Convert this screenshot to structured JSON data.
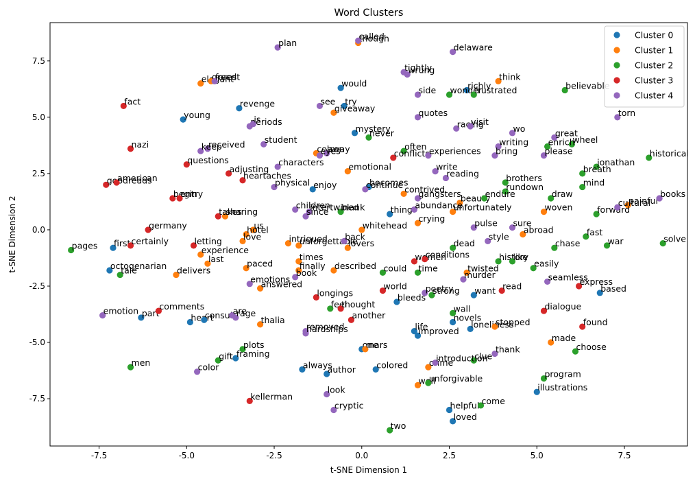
{
  "chart_data": {
    "type": "scatter",
    "title": "Word Clusters",
    "xlabel": "t-SNE Dimension 1",
    "ylabel": "t-SNE Dimension 2",
    "xlim": [
      -8.9,
      9.3
    ],
    "ylim": [
      -9.6,
      9.2
    ],
    "xticks": [
      -7.5,
      -5.0,
      -2.5,
      0.0,
      2.5,
      5.0,
      7.5
    ],
    "yticks": [
      -7.5,
      -5.0,
      -2.5,
      0.0,
      2.5,
      5.0,
      7.5
    ],
    "legend_position": "top-right",
    "colors": [
      "#1f77b4",
      "#ff7f0e",
      "#2ca02c",
      "#d62728",
      "#9467bd"
    ],
    "series": [
      {
        "name": "Cluster 0",
        "points": [
          {
            "x": -0.6,
            "y": 6.3,
            "label": "would"
          },
          {
            "x": -3.5,
            "y": 5.4,
            "label": "revenge"
          },
          {
            "x": -0.5,
            "y": 5.5,
            "label": "try"
          },
          {
            "x": -5.1,
            "y": 4.9,
            "label": "young"
          },
          {
            "x": -0.2,
            "y": 4.3,
            "label": "mystery"
          },
          {
            "x": -1.4,
            "y": 1.8,
            "label": "enjoy"
          },
          {
            "x": 0.2,
            "y": 1.9,
            "label": "becomes"
          },
          {
            "x": 0.8,
            "y": 0.7,
            "label": "thing"
          },
          {
            "x": -7.1,
            "y": -0.8,
            "label": "first"
          },
          {
            "x": -7.2,
            "y": -1.8,
            "label": "octogenarian"
          },
          {
            "x": 6.8,
            "y": -2.8,
            "label": "based"
          },
          {
            "x": 3.2,
            "y": -2.9,
            "label": "want"
          },
          {
            "x": 1.0,
            "y": -3.2,
            "label": "bleeds"
          },
          {
            "x": -6.3,
            "y": -3.9,
            "label": "part"
          },
          {
            "x": -4.9,
            "y": -4.1,
            "label": "heart"
          },
          {
            "x": -4.5,
            "y": -4.0,
            "label": "consult"
          },
          {
            "x": 2.6,
            "y": -4.1,
            "label": "novels"
          },
          {
            "x": 3.1,
            "y": -4.4,
            "label": "loneliness"
          },
          {
            "x": 1.5,
            "y": -4.5,
            "label": "life"
          },
          {
            "x": 1.6,
            "y": -4.7,
            "label": "improved"
          },
          {
            "x": 0.0,
            "y": -5.3,
            "label": "one"
          },
          {
            "x": -3.6,
            "y": -5.7,
            "label": "framing"
          },
          {
            "x": -1.7,
            "y": -6.2,
            "label": "always"
          },
          {
            "x": -1.0,
            "y": -6.4,
            "label": "author"
          },
          {
            "x": 0.4,
            "y": -6.2,
            "label": "colored"
          },
          {
            "x": 5.0,
            "y": -7.2,
            "label": "illustrations"
          },
          {
            "x": 2.5,
            "y": -8.0,
            "label": "helpful"
          },
          {
            "x": 2.6,
            "y": -8.5,
            "label": "loved"
          },
          {
            "x": 3.0,
            "y": 6.2,
            "label": "richly"
          }
        ]
      },
      {
        "name": "Cluster 1",
        "points": [
          {
            "x": -0.1,
            "y": 8.3,
            "label": "though"
          },
          {
            "x": 3.9,
            "y": 6.6,
            "label": "think"
          },
          {
            "x": -4.6,
            "y": 6.5,
            "label": "elegant"
          },
          {
            "x": -0.8,
            "y": 5.2,
            "label": "giveaway"
          },
          {
            "x": -1.3,
            "y": 3.4,
            "label": "colson"
          },
          {
            "x": -0.4,
            "y": 2.6,
            "label": "emotional"
          },
          {
            "x": 1.2,
            "y": 1.6,
            "label": "contrived"
          },
          {
            "x": 2.8,
            "y": 1.2,
            "label": "beauty"
          },
          {
            "x": 2.6,
            "y": 0.8,
            "label": "unfortunately"
          },
          {
            "x": 5.2,
            "y": 0.8,
            "label": "woven"
          },
          {
            "x": 7.6,
            "y": 1.1,
            "label": "painful"
          },
          {
            "x": -3.9,
            "y": 0.6,
            "label": "sharing"
          },
          {
            "x": -3.1,
            "y": 0.0,
            "label": "us"
          },
          {
            "x": -3.3,
            "y": -0.2,
            "label": "hotel"
          },
          {
            "x": 0.0,
            "y": 0.0,
            "label": "whitehead"
          },
          {
            "x": 1.6,
            "y": 0.3,
            "label": "crying"
          },
          {
            "x": 4.6,
            "y": -0.2,
            "label": "abroad"
          },
          {
            "x": -3.4,
            "y": -0.5,
            "label": "love"
          },
          {
            "x": -2.1,
            "y": -0.6,
            "label": "intrigued"
          },
          {
            "x": -1.8,
            "y": -0.7,
            "label": "unforgettable"
          },
          {
            "x": -0.4,
            "y": -0.8,
            "label": "lovers"
          },
          {
            "x": -4.6,
            "y": -1.1,
            "label": "experience"
          },
          {
            "x": -4.4,
            "y": -1.5,
            "label": "last"
          },
          {
            "x": -1.8,
            "y": -1.4,
            "label": "times"
          },
          {
            "x": -1.8,
            "y": -1.8,
            "label": "finally"
          },
          {
            "x": -3.3,
            "y": -1.7,
            "label": "paced"
          },
          {
            "x": -0.8,
            "y": -1.8,
            "label": "described"
          },
          {
            "x": -5.3,
            "y": -2.0,
            "label": "delivers"
          },
          {
            "x": 3.0,
            "y": -1.9,
            "label": "twisted"
          },
          {
            "x": -2.9,
            "y": -2.6,
            "label": "answered"
          },
          {
            "x": -2.9,
            "y": -4.2,
            "label": "thalia"
          },
          {
            "x": 3.8,
            "y": -4.3,
            "label": "stopped"
          },
          {
            "x": 5.4,
            "y": -5.0,
            "label": "made"
          },
          {
            "x": 0.1,
            "y": -5.3,
            "label": "mars"
          },
          {
            "x": 1.9,
            "y": -6.1,
            "label": "crime"
          },
          {
            "x": 1.6,
            "y": -6.9,
            "label": "well"
          },
          {
            "x": -4.3,
            "y": 6.6,
            "label": "greed"
          }
        ]
      },
      {
        "name": "Cluster 2",
        "points": [
          {
            "x": 5.8,
            "y": 6.2,
            "label": "believable"
          },
          {
            "x": 2.5,
            "y": 6.0,
            "label": "wonder"
          },
          {
            "x": 3.2,
            "y": 6.0,
            "label": "frustrated"
          },
          {
            "x": 0.2,
            "y": 4.1,
            "label": "never"
          },
          {
            "x": 1.2,
            "y": 3.5,
            "label": "often"
          },
          {
            "x": 6.0,
            "y": 3.8,
            "label": "wheel"
          },
          {
            "x": 5.3,
            "y": 3.7,
            "label": "enrich"
          },
          {
            "x": 8.2,
            "y": 3.2,
            "label": "historical"
          },
          {
            "x": 6.7,
            "y": 2.8,
            "label": "jonathan"
          },
          {
            "x": 6.3,
            "y": 2.5,
            "label": "breath"
          },
          {
            "x": 4.1,
            "y": 2.1,
            "label": "brothers"
          },
          {
            "x": 6.3,
            "y": 1.9,
            "label": "mind"
          },
          {
            "x": 4.1,
            "y": 1.7,
            "label": "rundown"
          },
          {
            "x": 3.5,
            "y": 1.4,
            "label": "endure"
          },
          {
            "x": 5.4,
            "y": 1.4,
            "label": "draw"
          },
          {
            "x": 6.7,
            "y": 0.7,
            "label": "forward"
          },
          {
            "x": -0.6,
            "y": 0.8,
            "label": "blank"
          },
          {
            "x": 6.4,
            "y": -0.3,
            "label": "fast"
          },
          {
            "x": 7.0,
            "y": -0.7,
            "label": "war"
          },
          {
            "x": 8.6,
            "y": -0.6,
            "label": "solve"
          },
          {
            "x": 5.5,
            "y": -0.8,
            "label": "chase"
          },
          {
            "x": 2.6,
            "y": -0.8,
            "label": "dead"
          },
          {
            "x": 3.9,
            "y": -1.4,
            "label": "history"
          },
          {
            "x": 4.3,
            "y": -1.4,
            "label": "like"
          },
          {
            "x": 4.9,
            "y": -1.7,
            "label": "easily"
          },
          {
            "x": -8.3,
            "y": -0.9,
            "label": "pages"
          },
          {
            "x": -6.9,
            "y": -2.0,
            "label": "tale"
          },
          {
            "x": 1.6,
            "y": -1.9,
            "label": "time"
          },
          {
            "x": 0.6,
            "y": -1.9,
            "label": "could"
          },
          {
            "x": 2.0,
            "y": -2.9,
            "label": "strong"
          },
          {
            "x": -0.9,
            "y": -3.5,
            "label": "feel"
          },
          {
            "x": 2.6,
            "y": -3.7,
            "label": "wall"
          },
          {
            "x": -3.4,
            "y": -5.3,
            "label": "plots"
          },
          {
            "x": -4.1,
            "y": -5.8,
            "label": "gift"
          },
          {
            "x": -6.6,
            "y": -6.1,
            "label": "men"
          },
          {
            "x": 3.2,
            "y": -5.8,
            "label": "clue"
          },
          {
            "x": 6.1,
            "y": -5.4,
            "label": "choose"
          },
          {
            "x": 5.2,
            "y": -6.6,
            "label": "program"
          },
          {
            "x": 1.9,
            "y": -6.8,
            "label": "unforgivable"
          },
          {
            "x": 3.4,
            "y": -7.8,
            "label": "come"
          },
          {
            "x": 0.8,
            "y": -8.9,
            "label": "two"
          }
        ]
      },
      {
        "name": "Cluster 3",
        "points": [
          {
            "x": -6.8,
            "y": 5.5,
            "label": "fact"
          },
          {
            "x": -6.6,
            "y": 3.6,
            "label": "nazi"
          },
          {
            "x": 0.9,
            "y": 3.2,
            "label": "conflicts"
          },
          {
            "x": -5.0,
            "y": 2.9,
            "label": "questions"
          },
          {
            "x": -3.8,
            "y": 2.5,
            "label": "adjusting"
          },
          {
            "x": -3.4,
            "y": 2.2,
            "label": "heartaches"
          },
          {
            "x": -7.3,
            "y": 2.0,
            "label": "goodreads"
          },
          {
            "x": -7.0,
            "y": 2.1,
            "label": "american"
          },
          {
            "x": -5.4,
            "y": 1.4,
            "label": "begin"
          },
          {
            "x": -5.2,
            "y": 1.4,
            "label": "entry"
          },
          {
            "x": -4.1,
            "y": 0.6,
            "label": "takes"
          },
          {
            "x": -6.1,
            "y": 0.0,
            "label": "germany"
          },
          {
            "x": -6.6,
            "y": -0.7,
            "label": "certainly"
          },
          {
            "x": -4.8,
            "y": -0.7,
            "label": "letting"
          },
          {
            "x": 1.5,
            "y": -1.4,
            "label": "women"
          },
          {
            "x": 1.8,
            "y": -1.3,
            "label": "conditions"
          },
          {
            "x": 0.6,
            "y": -2.7,
            "label": "world"
          },
          {
            "x": 4.0,
            "y": -2.7,
            "label": "read"
          },
          {
            "x": 6.2,
            "y": -2.5,
            "label": "express"
          },
          {
            "x": -1.3,
            "y": -3.0,
            "label": "longings"
          },
          {
            "x": -0.6,
            "y": -3.5,
            "label": "thought"
          },
          {
            "x": -5.8,
            "y": -3.6,
            "label": "comments"
          },
          {
            "x": 5.2,
            "y": -3.6,
            "label": "dialogue"
          },
          {
            "x": -0.3,
            "y": -4.0,
            "label": "another"
          },
          {
            "x": 6.3,
            "y": -4.3,
            "label": "found"
          },
          {
            "x": -3.2,
            "y": -7.6,
            "label": "kellerman"
          }
        ]
      },
      {
        "name": "Cluster 4",
        "points": [
          {
            "x": -0.1,
            "y": 8.4,
            "label": "called"
          },
          {
            "x": -2.4,
            "y": 8.1,
            "label": "plan"
          },
          {
            "x": 2.6,
            "y": 7.9,
            "label": "delaware"
          },
          {
            "x": 1.2,
            "y": 7.0,
            "label": "tightly"
          },
          {
            "x": 1.3,
            "y": 6.9,
            "label": "wrung"
          },
          {
            "x": 1.6,
            "y": 6.0,
            "label": "side"
          },
          {
            "x": -1.2,
            "y": 5.5,
            "label": "see"
          },
          {
            "x": 1.6,
            "y": 5.0,
            "label": "quotes"
          },
          {
            "x": 7.3,
            "y": 5.0,
            "label": "torn"
          },
          {
            "x": -3.2,
            "y": 4.6,
            "label": "periods"
          },
          {
            "x": -3.1,
            "y": 4.7,
            "label": "is"
          },
          {
            "x": 2.7,
            "y": 4.5,
            "label": "racing"
          },
          {
            "x": 3.1,
            "y": 4.6,
            "label": "visit"
          },
          {
            "x": 4.3,
            "y": 4.3,
            "label": "wo"
          },
          {
            "x": 5.5,
            "y": 4.1,
            "label": "great"
          },
          {
            "x": -2.8,
            "y": 3.8,
            "label": "student"
          },
          {
            "x": -4.4,
            "y": 3.6,
            "label": "received"
          },
          {
            "x": -4.6,
            "y": 3.5,
            "label": "keep"
          },
          {
            "x": 3.9,
            "y": 3.7,
            "label": "writing"
          },
          {
            "x": -1.0,
            "y": 3.4,
            "label": "away"
          },
          {
            "x": -1.2,
            "y": 3.3,
            "label": "eyes"
          },
          {
            "x": 1.9,
            "y": 3.3,
            "label": "experiences"
          },
          {
            "x": 3.8,
            "y": 3.3,
            "label": "bring"
          },
          {
            "x": 5.2,
            "y": 3.3,
            "label": "please"
          },
          {
            "x": -2.4,
            "y": 2.8,
            "label": "characters"
          },
          {
            "x": 2.1,
            "y": 2.6,
            "label": "write"
          },
          {
            "x": 2.4,
            "y": 2.3,
            "label": "reading"
          },
          {
            "x": -2.5,
            "y": 1.9,
            "label": "physical"
          },
          {
            "x": 0.1,
            "y": 1.8,
            "label": "continue"
          },
          {
            "x": 1.6,
            "y": 1.4,
            "label": "gangsters"
          },
          {
            "x": 8.5,
            "y": 1.4,
            "label": "books"
          },
          {
            "x": 7.3,
            "y": 1.0,
            "label": "cultural"
          },
          {
            "x": -1.9,
            "y": 0.9,
            "label": "children"
          },
          {
            "x": -1.5,
            "y": 0.8,
            "label": "intertwined"
          },
          {
            "x": -1.6,
            "y": 0.6,
            "label": "since"
          },
          {
            "x": 1.5,
            "y": 0.9,
            "label": "abundance"
          },
          {
            "x": 3.2,
            "y": 0.1,
            "label": "pulse"
          },
          {
            "x": 4.3,
            "y": 0.1,
            "label": "sure"
          },
          {
            "x": 3.6,
            "y": -0.5,
            "label": "style"
          },
          {
            "x": -0.5,
            "y": -0.5,
            "label": "back"
          },
          {
            "x": 2.9,
            "y": -2.2,
            "label": "murder"
          },
          {
            "x": -1.9,
            "y": -2.1,
            "label": "book"
          },
          {
            "x": -3.2,
            "y": -2.4,
            "label": "emotions"
          },
          {
            "x": 5.3,
            "y": -2.3,
            "label": "seamless"
          },
          {
            "x": 1.8,
            "y": -2.8,
            "label": "poetry"
          },
          {
            "x": -7.4,
            "y": -3.8,
            "label": "emotion"
          },
          {
            "x": -3.7,
            "y": -3.8,
            "label": "are"
          },
          {
            "x": -3.6,
            "y": -3.9,
            "label": "rage"
          },
          {
            "x": -1.6,
            "y": -4.5,
            "label": "removed"
          },
          {
            "x": -1.6,
            "y": -4.6,
            "label": "hardships"
          },
          {
            "x": 3.8,
            "y": -5.5,
            "label": "thank"
          },
          {
            "x": 2.1,
            "y": -5.9,
            "label": "introduction"
          },
          {
            "x": -4.7,
            "y": -6.3,
            "label": "color"
          },
          {
            "x": -1.0,
            "y": -7.3,
            "label": "look"
          },
          {
            "x": -0.8,
            "y": -8.0,
            "label": "cryptic"
          },
          {
            "x": -4.2,
            "y": 6.6,
            "label": "forest"
          }
        ]
      }
    ]
  }
}
